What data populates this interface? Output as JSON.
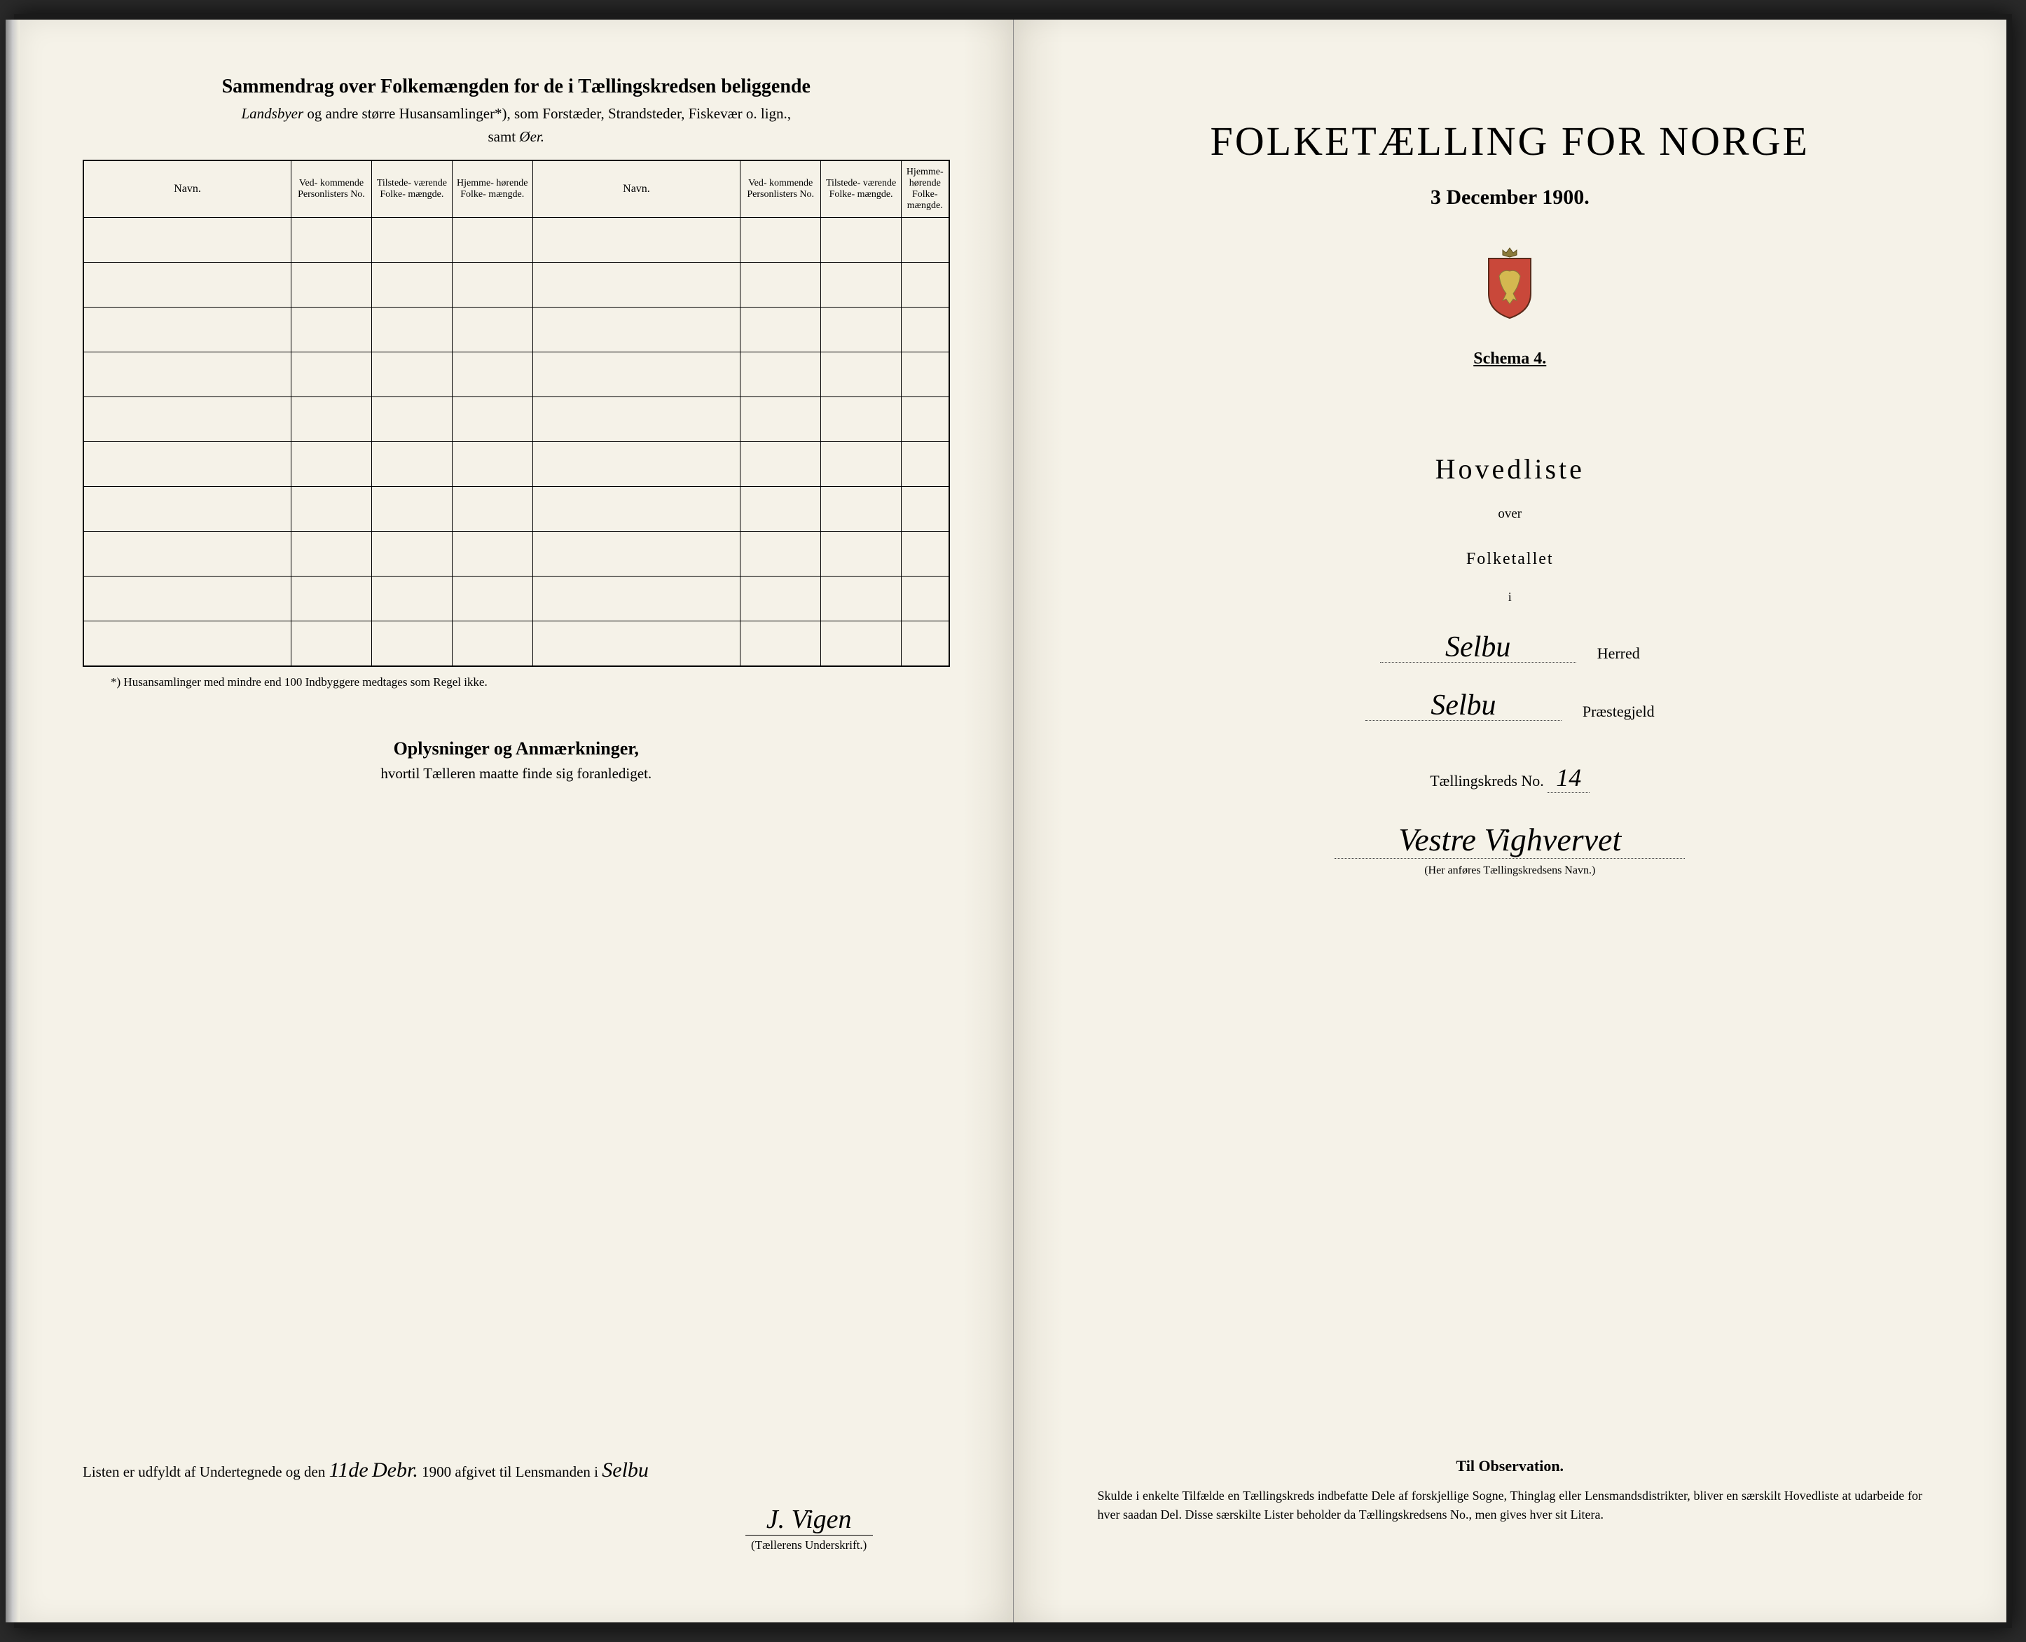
{
  "colors": {
    "paper": "#f5f2e8",
    "ink": "#1a1a1a",
    "background": "#2a2a2a"
  },
  "left_page": {
    "title": "Sammendrag over Folkemængden for de i Tællingskredsen beliggende",
    "subtitle_italic_1": "Landsbyer",
    "subtitle_plain": " og andre større Husansamlinger*), som Forstæder, Strandsteder, Fiskevær o. lign.,",
    "subtitle_2_prefix": "samt ",
    "subtitle_2_italic": "Øer.",
    "table": {
      "headers": {
        "navn": "Navn.",
        "vedkommende": "Ved-\nkommende\nPersonlisters\nNo.",
        "tilstede": "Tilstede-\nværende\nFolke-\nmængde.",
        "hjemme": "Hjemme-\nhørende\nFolke-\nmængde."
      },
      "row_count": 10
    },
    "footnote": "*) Husansamlinger med mindre end 100 Indbyggere medtages som Regel ikke.",
    "section_title": "Oplysninger og Anmærkninger,",
    "section_sub": "hvortil Tælleren maatte finde sig foranlediget.",
    "bottom": {
      "prefix": "Listen er udfyldt af Undertegnede og den ",
      "date_day": "11de",
      "date_month": "Debr.",
      "year": " 1900 afgivet til Lensmanden i ",
      "place": "Selbu"
    },
    "signature": "J. Vigen",
    "signature_label": "(Tællerens Underskrift.)"
  },
  "right_page": {
    "main_title": "FOLKETÆLLING FOR NORGE",
    "date": "3 December 1900.",
    "schema": "Schema 4.",
    "hovedliste": "Hovedliste",
    "over": "over",
    "folketallet": "Folketallet",
    "i": "i",
    "herred": {
      "value": "Selbu",
      "label": "Herred"
    },
    "praestegjeld": {
      "value": "Selbu",
      "label": "Præstegjeld"
    },
    "kreds": {
      "prefix": "Tællingskreds No. ",
      "number": "14",
      "name": "Vestre Vighvervet",
      "note": "(Her anføres Tællingskredsens Navn.)"
    },
    "observation": {
      "title": "Til Observation.",
      "body": "Skulde i enkelte Tilfælde en Tællingskreds indbefatte Dele af forskjellige Sogne, Thinglag eller Lensmandsdistrikter, bliver en særskilt Hovedliste at udarbeide for hver saadan Del. Disse særskilte Lister beholder da Tællingskredsens No., men gives hver sit Litera."
    }
  }
}
